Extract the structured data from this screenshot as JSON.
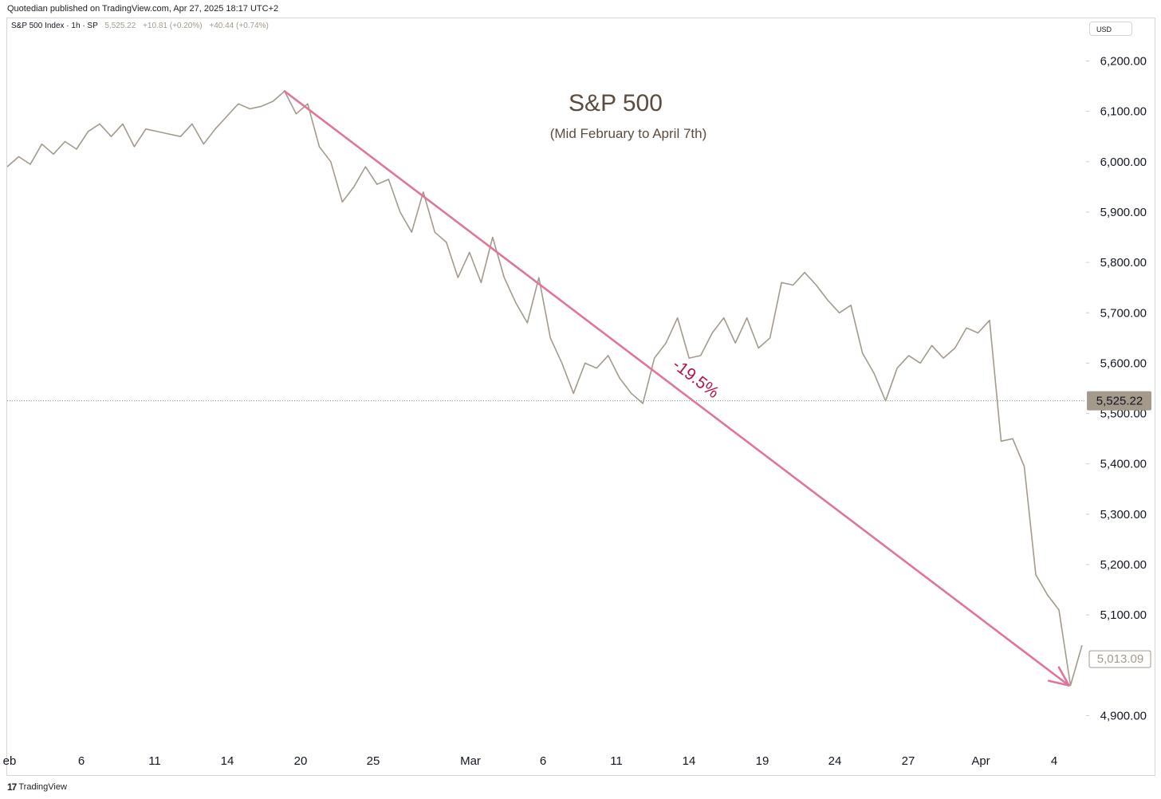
{
  "header": {
    "published": "Quotedian published on TradingView.com, Apr 27, 2025 18:17 UTC+2"
  },
  "legend": {
    "symbol": "S&P 500 Index · 1h · SP",
    "last": "5,525.22",
    "change": "+10.81 (+0.20%)",
    "change2": "+40.44 (+0.74%)"
  },
  "currency": "USD",
  "footer": {
    "logo_text": "TradingView",
    "logo_icon": "tradingview-logo-icon"
  },
  "colors": {
    "price_line": "#a49a8b",
    "arrow": "#e0759a",
    "annotation": "#b3124e",
    "title": "#5a4c3f",
    "last_price_badge": "#a49a8b"
  },
  "chart_data": {
    "type": "line",
    "title": "S&P 500",
    "subtitle": "(Mid February to April 7th)",
    "ylim": [
      4850,
      6300
    ],
    "y_ticks": [
      "6,200.00",
      "6,100.00",
      "6,000.00",
      "5,900.00",
      "5,800.00",
      "5,700.00",
      "5,600.00",
      "5,500.00",
      "5,400.00",
      "5,300.00",
      "5,200.00",
      "5,100.00",
      "4,900.00"
    ],
    "y_tick_values": [
      6200,
      6100,
      6000,
      5900,
      5800,
      5700,
      5600,
      5500,
      5400,
      5300,
      5200,
      5100,
      4900
    ],
    "x_ticks": [
      "eb",
      "6",
      "11",
      "14",
      "20",
      "25",
      "Mar",
      "6",
      "11",
      "14",
      "19",
      "24",
      "27",
      "Apr",
      "4"
    ],
    "price_labels": {
      "last": "5,525.22",
      "prev": "5,013.09"
    },
    "last_price_value": 5525.22,
    "prev_close_value": 5013.09,
    "annotation": {
      "text": "-19.5%",
      "from_index": 24,
      "from_value": 6140,
      "to_index": 92,
      "to_value": 4960
    },
    "series": [
      {
        "values": [
          5990,
          6010,
          5995,
          6035,
          6015,
          6040,
          6025,
          6060,
          6075,
          6050,
          6075,
          6030,
          6065,
          6060,
          6055,
          6050,
          6075,
          6035,
          6065,
          6090,
          6115,
          6105,
          6110,
          6120,
          6140,
          6095,
          6115,
          6030,
          6000,
          5920,
          5950,
          5990,
          5955,
          5965,
          5900,
          5860,
          5940,
          5860,
          5840,
          5770,
          5820,
          5760,
          5850,
          5770,
          5720,
          5680,
          5770,
          5650,
          5600,
          5540,
          5600,
          5590,
          5615,
          5570,
          5540,
          5520,
          5610,
          5640,
          5690,
          5610,
          5615,
          5660,
          5690,
          5640,
          5690,
          5630,
          5650,
          5760,
          5755,
          5780,
          5755,
          5725,
          5700,
          5715,
          5620,
          5580,
          5525,
          5590,
          5615,
          5600,
          5635,
          5610,
          5630,
          5670,
          5660,
          5685,
          5445,
          5450,
          5395,
          5180,
          5140,
          5110,
          4960,
          5040
        ]
      }
    ]
  }
}
